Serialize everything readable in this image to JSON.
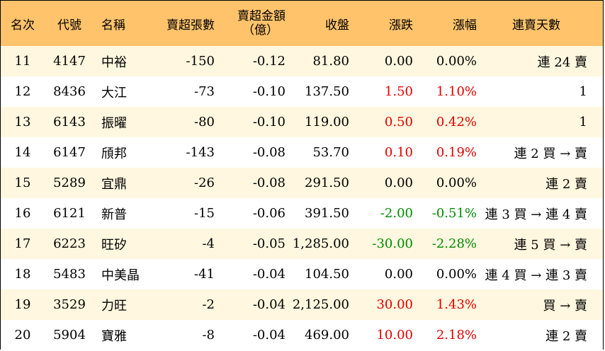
{
  "headers": {
    "rank": "名次",
    "code": "代號",
    "name": "名稱",
    "sell_volume": "賣超張數",
    "sell_amount_line1": "賣超金額",
    "sell_amount_line2": "（億）",
    "close": "收盤",
    "change": "漲跌",
    "change_pct": "漲幅",
    "streak": "連賣天數"
  },
  "colors": {
    "header_bg": "#ffc36b",
    "odd_row_bg": "#fff7df",
    "up": "#e00000",
    "down": "#008a00"
  },
  "rows": [
    {
      "rank": "11",
      "code": "4147",
      "name": "中裕",
      "vol": "-150",
      "amt": "-0.12",
      "close": "81.80",
      "chg": "0.00",
      "pct": "0.00%",
      "dir": "flat",
      "streak": "連 24 賣"
    },
    {
      "rank": "12",
      "code": "8436",
      "name": "大江",
      "vol": "-73",
      "amt": "-0.10",
      "close": "137.50",
      "chg": "1.50",
      "pct": "1.10%",
      "dir": "up",
      "streak": "1"
    },
    {
      "rank": "13",
      "code": "6143",
      "name": "振曜",
      "vol": "-80",
      "amt": "-0.10",
      "close": "119.00",
      "chg": "0.50",
      "pct": "0.42%",
      "dir": "up",
      "streak": "1"
    },
    {
      "rank": "14",
      "code": "6147",
      "name": "頎邦",
      "vol": "-143",
      "amt": "-0.08",
      "close": "53.70",
      "chg": "0.10",
      "pct": "0.19%",
      "dir": "up",
      "streak": "連 2 買 → 賣"
    },
    {
      "rank": "15",
      "code": "5289",
      "name": "宜鼎",
      "vol": "-26",
      "amt": "-0.08",
      "close": "291.50",
      "chg": "0.00",
      "pct": "0.00%",
      "dir": "flat",
      "streak": "連 2 賣"
    },
    {
      "rank": "16",
      "code": "6121",
      "name": "新普",
      "vol": "-15",
      "amt": "-0.06",
      "close": "391.50",
      "chg": "-2.00",
      "pct": "-0.51%",
      "dir": "down",
      "streak": "連 3 買 → 連 4 賣"
    },
    {
      "rank": "17",
      "code": "6223",
      "name": "旺矽",
      "vol": "-4",
      "amt": "-0.05",
      "close": "1,285.00",
      "chg": "-30.00",
      "pct": "-2.28%",
      "dir": "down",
      "streak": "連 5 買 → 賣"
    },
    {
      "rank": "18",
      "code": "5483",
      "name": "中美晶",
      "vol": "-41",
      "amt": "-0.04",
      "close": "104.50",
      "chg": "0.00",
      "pct": "0.00%",
      "dir": "flat",
      "streak": "連 4 買 → 連 3 賣"
    },
    {
      "rank": "19",
      "code": "3529",
      "name": "力旺",
      "vol": "-2",
      "amt": "-0.04",
      "close": "2,125.00",
      "chg": "30.00",
      "pct": "1.43%",
      "dir": "up",
      "streak": "買 → 賣"
    },
    {
      "rank": "20",
      "code": "5904",
      "name": "寶雅",
      "vol": "-8",
      "amt": "-0.04",
      "close": "469.00",
      "chg": "10.00",
      "pct": "2.18%",
      "dir": "up",
      "streak": "連 2 賣"
    }
  ]
}
